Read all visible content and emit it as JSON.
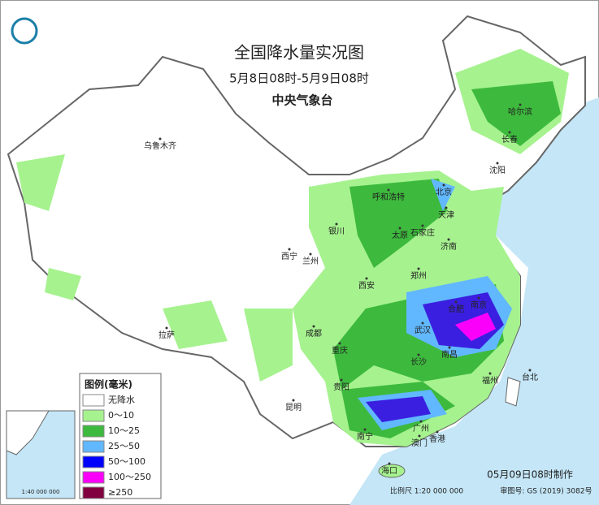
{
  "header": {
    "title": "全国降水量实况图",
    "subtitle": "5月8日08时-5月9日08时",
    "agency": "中央气象台"
  },
  "legend": {
    "title": "图例(毫米)",
    "items": [
      {
        "label": "无降水",
        "color": "#ffffff"
      },
      {
        "label": "0～10",
        "color": "#a6f28f"
      },
      {
        "label": "10～25",
        "color": "#3dba3d"
      },
      {
        "label": "25～50",
        "color": "#61b8ff"
      },
      {
        "label": "50～100",
        "color": "#0000ff"
      },
      {
        "label": "100～250",
        "color": "#fa00fa"
      },
      {
        "label": "≥250",
        "color": "#800040"
      }
    ]
  },
  "cities": [
    "乌鲁木齐",
    "哈尔滨",
    "长春",
    "沈阳",
    "北京",
    "天津",
    "呼和浩特",
    "银川",
    "太原",
    "石家庄",
    "济南",
    "西宁",
    "兰州",
    "郑州",
    "西安",
    "合肥",
    "南京",
    "武汉",
    "成都",
    "重庆",
    "拉萨",
    "长沙",
    "南昌",
    "福州",
    "台北",
    "贵阳",
    "昆明",
    "南宁",
    "广州",
    "澳门",
    "香港",
    "海口"
  ],
  "footer": {
    "made": "05月09日08时制作",
    "scale": "比例尺 1:20 000 000",
    "approval": "审图号: GS (2019) 3082号"
  },
  "inset": {
    "scale": "1:40 000 000"
  }
}
